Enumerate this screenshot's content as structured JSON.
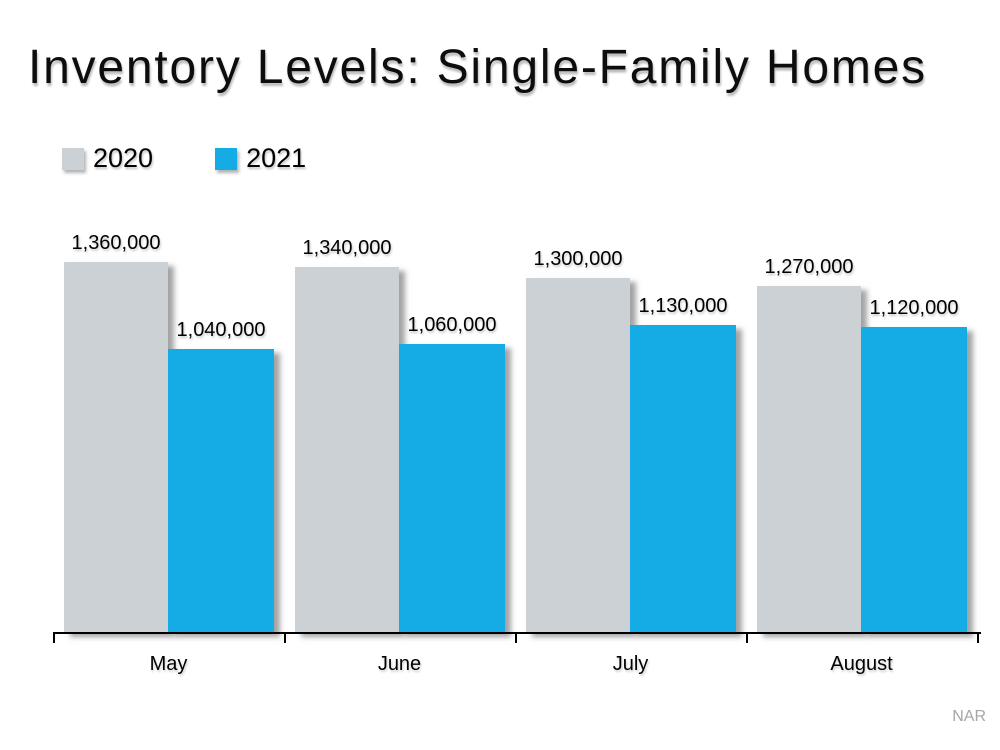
{
  "page": {
    "background": "#ffffff",
    "source_label": "NAR"
  },
  "title": "Inventory Levels: Single-Family Homes",
  "chart_data": {
    "type": "bar",
    "title": "Inventory Levels: Single-Family Homes",
    "categories": [
      "May",
      "June",
      "July",
      "August"
    ],
    "series": [
      {
        "name": "2020",
        "color": "#ccd1d5",
        "values": [
          1360000,
          1340000,
          1300000,
          1270000
        ],
        "labels": [
          "1,360,000",
          "1,340,000",
          "1,300,000",
          "1,270,000"
        ]
      },
      {
        "name": "2021",
        "color": "#15abe4",
        "values": [
          1040000,
          1060000,
          1130000,
          1120000
        ],
        "labels": [
          "1,040,000",
          "1,060,000",
          "1,130,000",
          "1,120,000"
        ]
      }
    ],
    "xlabel": "",
    "ylabel": "",
    "ylim": [
      0,
      1400000
    ],
    "grid": false,
    "legend_position": "top-left",
    "value_labels_shown": true,
    "axis_color": "#000000"
  }
}
